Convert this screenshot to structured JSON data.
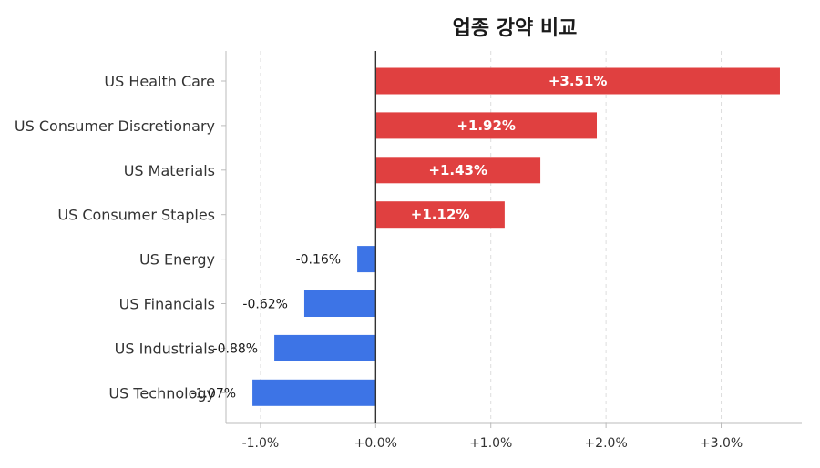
{
  "chart_data": {
    "type": "bar",
    "orientation": "horizontal",
    "title": "업종 강약 비교",
    "xlabel": "",
    "ylabel": "",
    "categories": [
      "US Health Care",
      "US Consumer Discretionary",
      "US Materials",
      "US Consumer Staples",
      "US Energy",
      "US Financials",
      "US Industrials",
      "US Technology"
    ],
    "values": [
      3.51,
      1.92,
      1.43,
      1.12,
      -0.16,
      -0.62,
      -0.88,
      -1.07
    ],
    "value_labels": [
      "+3.51%",
      "+1.92%",
      "+1.43%",
      "+1.12%",
      "-0.16%",
      "-0.62%",
      "-0.88%",
      "-1.07%"
    ],
    "xlim": [
      -1.3,
      3.7
    ],
    "xticks": [
      -1.0,
      0.0,
      1.0,
      2.0,
      3.0
    ],
    "xtick_labels": [
      "-1.0%",
      "+0.0%",
      "+1.0%",
      "+2.0%",
      "+3.0%"
    ],
    "grid": "vertical dashed",
    "colors": {
      "positive": "#e04040",
      "negative": "#3d74e6",
      "zero_line": "#333333",
      "grid": "#dddddd",
      "axis": "#bbbbbb"
    }
  }
}
